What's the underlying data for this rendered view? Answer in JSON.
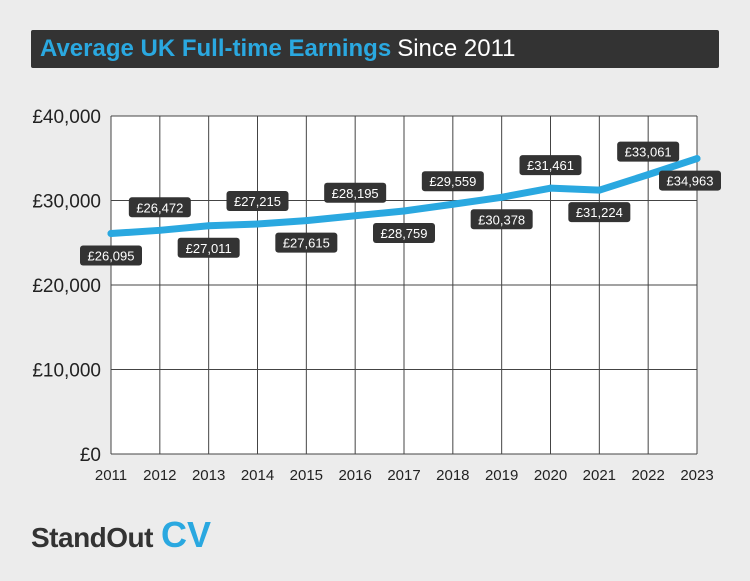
{
  "header": {
    "title_main": "Average UK Full-time Earnings",
    "title_sub": "Since 2011"
  },
  "chart_data": {
    "type": "line",
    "title": "Average UK Full-time Earnings Since 2011",
    "xlabel": "",
    "ylabel": "",
    "x": [
      "2011",
      "2012",
      "2013",
      "2014",
      "2015",
      "2016",
      "2017",
      "2018",
      "2019",
      "2020",
      "2021",
      "2022",
      "2023"
    ],
    "series": [
      {
        "values": [
          26095,
          26472,
          27011,
          27215,
          27615,
          28195,
          28759,
          29559,
          30378,
          31461,
          31224,
          33061,
          34963
        ],
        "data_labels": [
          "£26,095",
          "£26,472",
          "£27,011",
          "£27,215",
          "£27,615",
          "£28,195",
          "£28,759",
          "£29,559",
          "£30,378",
          "£31,461",
          "£31,224",
          "£33,061",
          "£34,963"
        ],
        "label_placement": [
          "below",
          "above",
          "below",
          "above",
          "below",
          "above",
          "below",
          "above",
          "below",
          "above",
          "below",
          "above",
          "below"
        ],
        "color": "#2aa8e0"
      }
    ],
    "ylim": [
      0,
      40000
    ],
    "yticks": [
      0,
      10000,
      20000,
      30000,
      40000
    ],
    "ytick_labels": [
      "£0",
      "£10,000",
      "£20,000",
      "£30,000",
      "£40,000"
    ],
    "grid": true,
    "legend": "none"
  },
  "brand": {
    "name": "StandOut",
    "suffix": "CV"
  },
  "colors": {
    "background": "#ececec",
    "title_bar": "#333333",
    "accent": "#2aa8e0",
    "label_box": "#333333",
    "grid": "#444444"
  }
}
